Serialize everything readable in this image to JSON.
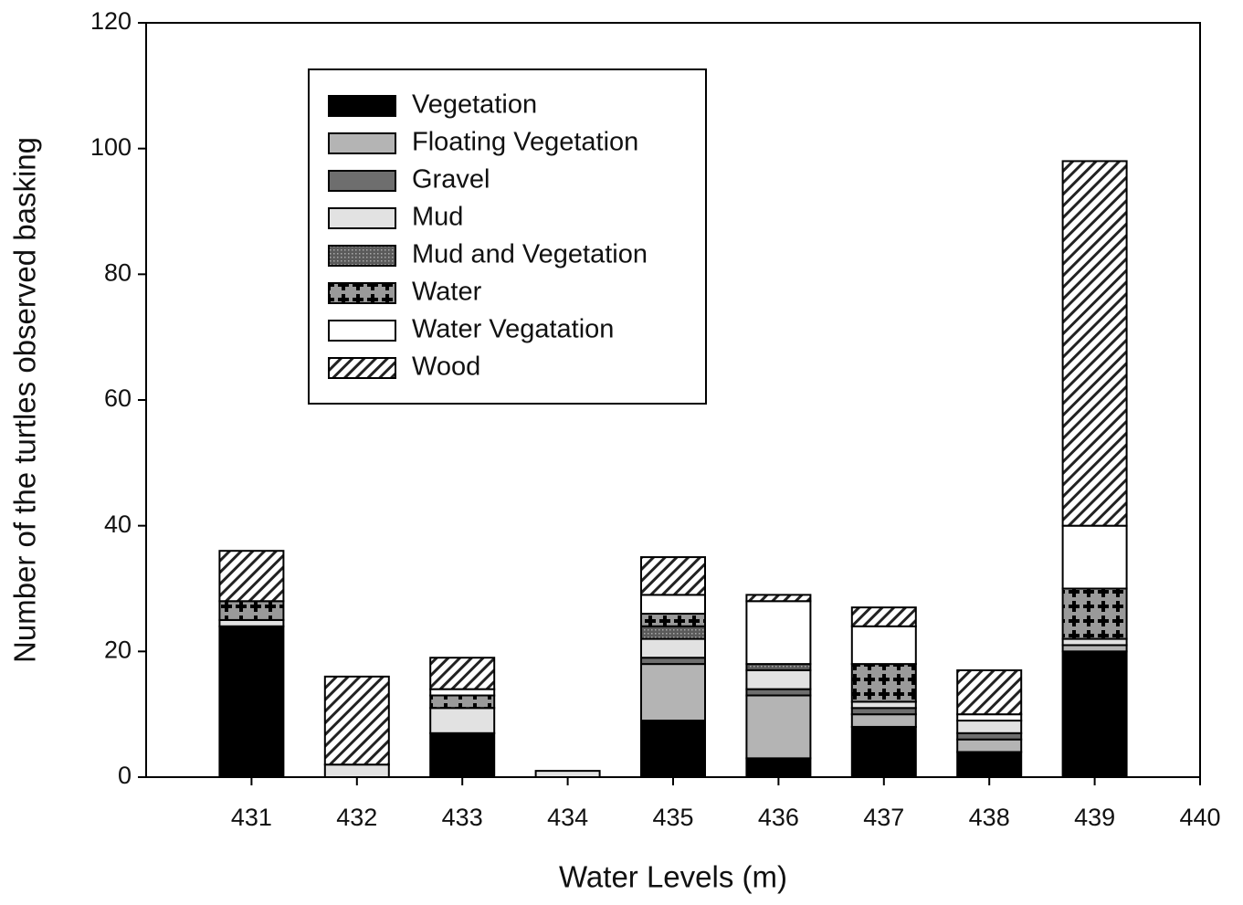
{
  "chart_data": {
    "type": "stacked_bar",
    "xlabel": "Water Levels (m)",
    "ylabel": "Number of the turtles observed basking",
    "x": [
      431,
      432,
      433,
      434,
      435,
      436,
      437,
      438,
      439
    ],
    "xlim": [
      430,
      440
    ],
    "xticks": [
      431,
      432,
      433,
      434,
      435,
      436,
      437,
      438,
      439,
      440
    ],
    "ylim": [
      0,
      120
    ],
    "yticks": [
      0,
      20,
      40,
      60,
      80,
      100,
      120
    ],
    "legend": "upper left",
    "series": [
      {
        "name": "Vegetation",
        "color": "#000000",
        "hatch": "solid",
        "values": [
          24,
          0,
          7,
          0,
          9,
          3,
          8,
          4,
          20
        ]
      },
      {
        "name": "Floating Vegetation",
        "color": "#b4b4b4",
        "hatch": "solid",
        "values": [
          0,
          0,
          0,
          0,
          9,
          10,
          2,
          2,
          1
        ]
      },
      {
        "name": "Gravel",
        "color": "#6e6e6e",
        "hatch": "solid",
        "values": [
          0,
          0,
          0,
          0,
          1,
          1,
          1,
          1,
          0
        ]
      },
      {
        "name": "Mud",
        "color": "#e2e2e2",
        "hatch": "solid",
        "values": [
          1,
          2,
          4,
          1,
          3,
          3,
          1,
          2,
          1
        ]
      },
      {
        "name": "Mud and Vegetation",
        "color": "#5a5a5a",
        "hatch": "dots",
        "values": [
          0,
          0,
          0,
          0,
          2,
          1,
          0,
          0,
          0
        ]
      },
      {
        "name": "Water",
        "color": "#9a9a9a",
        "hatch": "crosses",
        "values": [
          3,
          0,
          2,
          0,
          2,
          0,
          6,
          0,
          8
        ]
      },
      {
        "name": "Water Vegatation",
        "color": "#ffffff",
        "hatch": "solid",
        "values": [
          0,
          0,
          1,
          0,
          3,
          10,
          6,
          1,
          10
        ]
      },
      {
        "name": "Wood",
        "color": "#d8d8d8",
        "hatch": "diagonal",
        "values": [
          8,
          14,
          5,
          0,
          6,
          1,
          3,
          7,
          58
        ]
      }
    ]
  }
}
